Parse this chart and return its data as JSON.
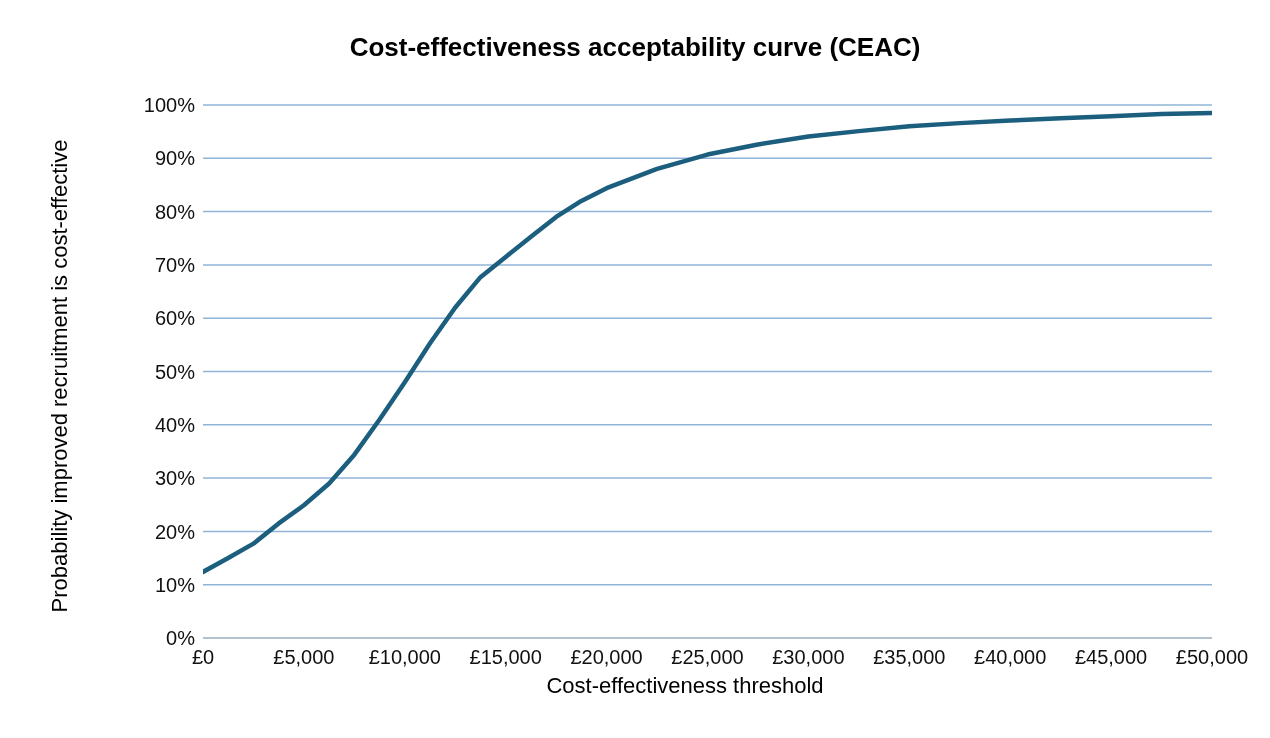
{
  "chart_data": {
    "type": "line",
    "title": "Cost-effectiveness acceptability curve (CEAC)",
    "xlabel": "Cost-effectiveness threshold",
    "ylabel": "Probability improved recruitment is cost-effective",
    "x": [
      0,
      1250,
      2500,
      3750,
      5000,
      6250,
      7500,
      8750,
      10000,
      11250,
      12500,
      13750,
      15000,
      16250,
      17500,
      18750,
      20000,
      22500,
      25000,
      27500,
      30000,
      32500,
      35000,
      37500,
      40000,
      42500,
      45000,
      47500,
      50000
    ],
    "series": [
      {
        "color": "#1b5e7e",
        "values": [
          12.4,
          15,
          17.7,
          21.5,
          24.9,
          29,
          34.4,
          41,
          48,
          55.3,
          62,
          67.7,
          71.5,
          75.3,
          79,
          82,
          84.4,
          88,
          90.7,
          92.6,
          94.1,
          95.1,
          96,
          96.6,
          97.1,
          97.5,
          97.9,
          98.3,
          98.5
        ]
      }
    ],
    "xlim": [
      0,
      50000
    ],
    "xticks": [
      {
        "value": 0,
        "label": "£0"
      },
      {
        "value": 5000,
        "label": "£5,000"
      },
      {
        "value": 10000,
        "label": "£10,000"
      },
      {
        "value": 15000,
        "label": "£15,000"
      },
      {
        "value": 20000,
        "label": "£20,000"
      },
      {
        "value": 25000,
        "label": "£25,000"
      },
      {
        "value": 30000,
        "label": "£30,000"
      },
      {
        "value": 35000,
        "label": "£35,000"
      },
      {
        "value": 40000,
        "label": "£40,000"
      },
      {
        "value": 45000,
        "label": "£45,000"
      },
      {
        "value": 50000,
        "label": "£50,000"
      }
    ],
    "ylim": [
      0,
      100
    ],
    "yticks": [
      {
        "value": 0,
        "label": "0%"
      },
      {
        "value": 10,
        "label": "10%"
      },
      {
        "value": 20,
        "label": "20%"
      },
      {
        "value": 30,
        "label": "30%"
      },
      {
        "value": 40,
        "label": "40%"
      },
      {
        "value": 50,
        "label": "50%"
      },
      {
        "value": 60,
        "label": "60%"
      },
      {
        "value": 70,
        "label": "70%"
      },
      {
        "value": 80,
        "label": "80%"
      },
      {
        "value": 90,
        "label": "90%"
      },
      {
        "value": 100,
        "label": "100%"
      }
    ],
    "grid": "y",
    "legend": false,
    "marker": "none",
    "line_style": "solid"
  }
}
